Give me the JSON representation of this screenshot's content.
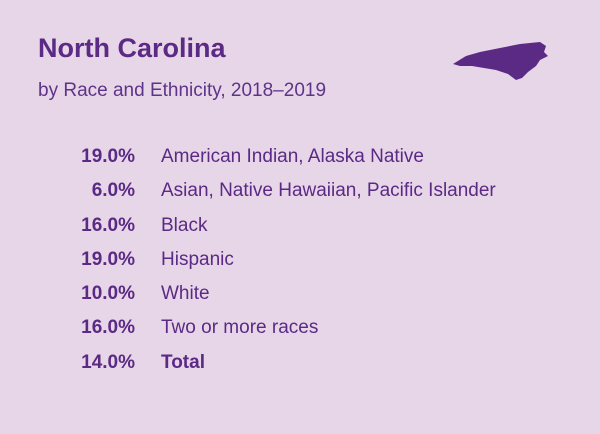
{
  "header": {
    "title": "North Carolina",
    "subtitle": "by Race and Ethnicity, 2018–2019"
  },
  "table": {
    "rows": [
      [
        "19.0%",
        "American Indian, Alaska Native"
      ],
      [
        "6.0%",
        "Asian, Native Hawaiian, Pacific Islander"
      ],
      [
        "16.0%",
        "Black"
      ],
      [
        "19.0%",
        "Hispanic"
      ],
      [
        "10.0%",
        "White"
      ],
      [
        "16.0%",
        "Two or more races"
      ],
      [
        "14.0%",
        "Total"
      ]
    ]
  }
}
